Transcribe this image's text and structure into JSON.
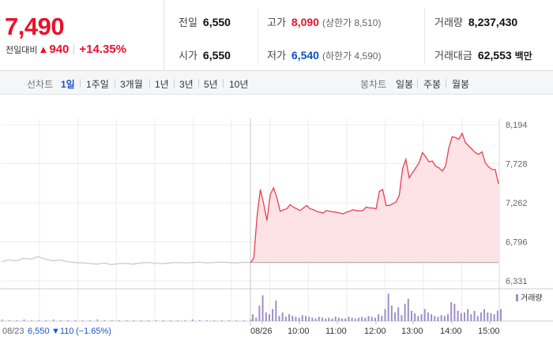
{
  "header": {
    "current_price": "7,490",
    "change_label": "전일대비",
    "change_arrow": "▲",
    "change_value": "940",
    "change_percent": "+14.35%",
    "stats": {
      "prev_close_label": "전일",
      "prev_close_value": "6,550",
      "high_label": "고가",
      "high_value": "8,090",
      "upper_limit": "(상한가 8,510)",
      "volume_label": "거래량",
      "volume_value": "8,237,430",
      "open_label": "시가",
      "open_value": "6,550",
      "low_label": "저가",
      "low_value": "6,540",
      "lower_limit": "(하한가 4,590)",
      "amount_label": "거래대금",
      "amount_value": "62,553",
      "amount_unit": "백만"
    }
  },
  "toolbar": {
    "line_chart_label": "선차트",
    "line_periods": [
      "1일",
      "1주일",
      "3개월",
      "1년",
      "3년",
      "5년",
      "10년"
    ],
    "active_period": "1일",
    "candle_chart_label": "봉차트",
    "candle_periods": [
      "일봉",
      "주봉",
      "월봉"
    ]
  },
  "chart_data": {
    "type": "line",
    "y_ticks": [
      "8,194",
      "7,728",
      "7,262",
      "6,796",
      "6,331"
    ],
    "ylim": [
      6331,
      8194
    ],
    "x_ticks": [
      "08/26",
      "10:00",
      "11:00",
      "12:00",
      "13:00",
      "14:00",
      "15:00"
    ],
    "prev_day_label": "08/23",
    "prev_day_close": "6,550",
    "prev_day_change": "▼110",
    "prev_day_change_pct": "(−1.65%)",
    "volume_legend": "거래량",
    "grid": true,
    "colors": {
      "prev_line": "#c8c8c8",
      "price_line": "#e8404f",
      "area": "#fde3e6",
      "volume": "#9d8fc9"
    },
    "prev_day_series": [
      6560,
      6580,
      6570,
      6600,
      6590,
      6620,
      6590,
      6570,
      6580,
      6560,
      6550,
      6545,
      6540,
      6530,
      6545,
      6525,
      6535,
      6540,
      6530,
      6545,
      6550,
      6540,
      6535,
      6545,
      6550,
      6545,
      6550,
      6555,
      6545,
      6550,
      6555,
      6550,
      6545,
      6552,
      6550
    ],
    "today_series": [
      6550,
      6600,
      7100,
      7420,
      7250,
      7050,
      7360,
      7440,
      7320,
      7160,
      7180,
      7190,
      7240,
      7210,
      7190,
      7170,
      7200,
      7230,
      7190,
      7180,
      7160,
      7150,
      7140,
      7170,
      7160,
      7155,
      7150,
      7140,
      7130,
      7150,
      7160,
      7180,
      7170,
      7165,
      7170,
      7210,
      7200,
      7200,
      7190,
      7400,
      7420,
      7230,
      7230,
      7250,
      7270,
      7350,
      7670,
      7780,
      7560,
      7620,
      7680,
      7740,
      7860,
      7810,
      7750,
      7760,
      7700,
      7680,
      7640,
      7700,
      7920,
      8050,
      8040,
      8020,
      8090,
      7980,
      7940,
      7900,
      7860,
      7840,
      7870,
      7740,
      7690,
      7660,
      7660,
      7490
    ],
    "prev_day_volume": [
      2,
      1,
      1,
      2,
      1,
      1,
      1,
      2,
      1,
      1,
      1,
      1,
      1,
      2,
      1,
      1,
      1,
      1,
      1,
      1,
      1,
      1,
      1,
      1,
      1,
      1,
      2,
      1,
      1,
      1,
      1,
      1,
      1,
      1,
      2
    ],
    "today_volume": [
      8,
      4,
      18,
      30,
      10,
      8,
      14,
      24,
      6,
      10,
      5,
      8,
      6,
      5,
      4,
      7,
      6,
      5,
      4,
      3,
      5,
      4,
      3,
      4,
      3,
      5,
      4,
      3,
      3,
      5,
      4,
      3,
      4,
      5,
      4,
      6,
      5,
      4,
      8,
      6,
      14,
      32,
      18,
      10,
      16,
      7,
      20,
      26,
      12,
      9,
      6,
      8,
      14,
      10,
      8,
      6,
      5,
      7,
      6,
      8,
      22,
      20,
      12,
      9,
      10,
      14,
      8,
      12,
      6,
      10,
      14,
      10,
      9,
      8,
      12,
      14
    ]
  }
}
